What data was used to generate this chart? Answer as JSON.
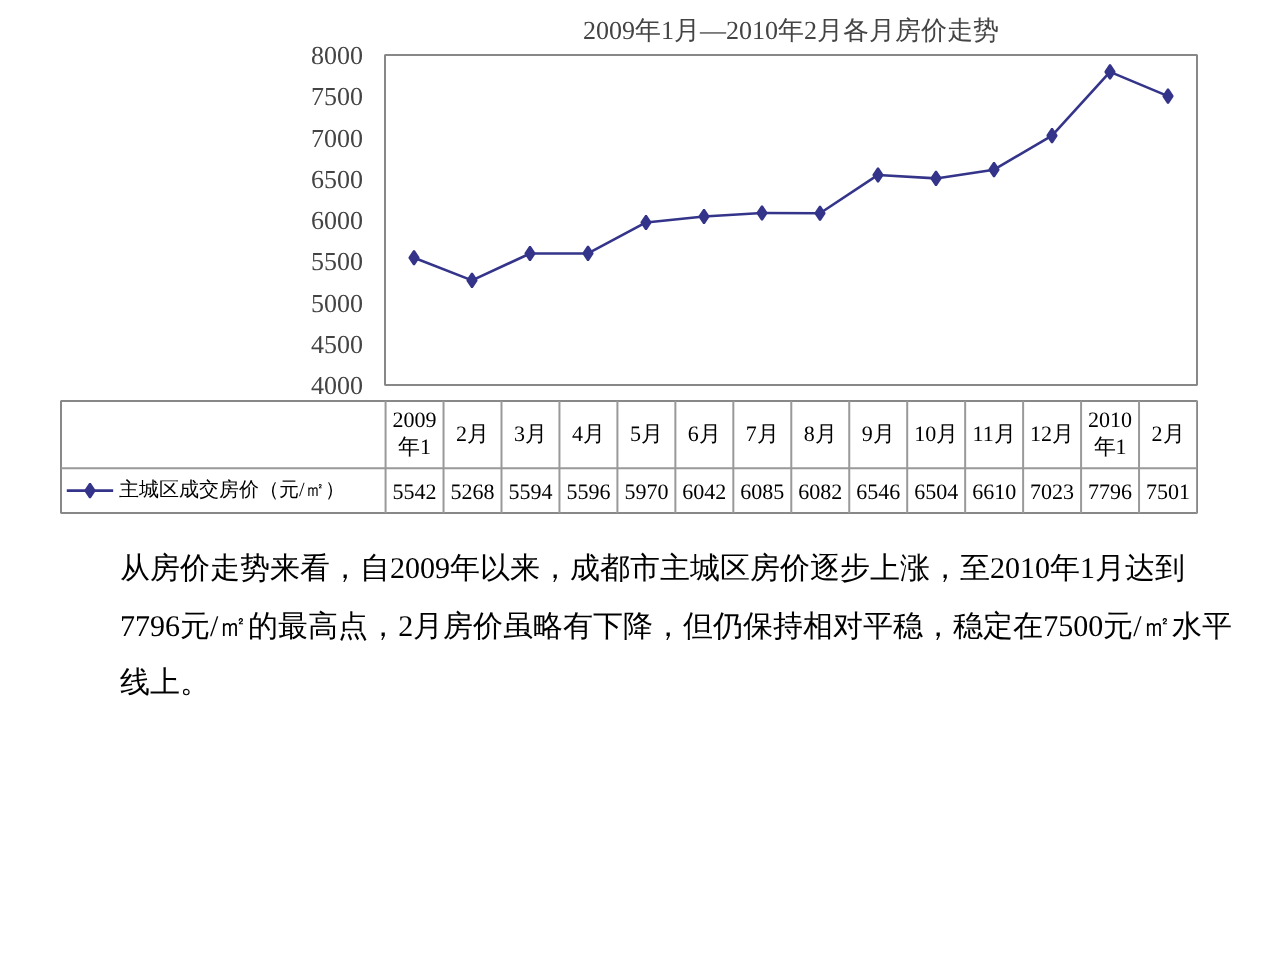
{
  "chart_data": {
    "type": "line",
    "title": "2009年1月—2010年2月各月房价走势",
    "categories": [
      "2009年1",
      "2月",
      "3月",
      "4月",
      "5月",
      "6月",
      "7月",
      "8月",
      "9月",
      "10月",
      "11月",
      "12月",
      "2010年1",
      "2月"
    ],
    "series": [
      {
        "name": "主城区成交房价（元/㎡）",
        "color": "#34348a",
        "values": [
          5542,
          5268,
          5594,
          5596,
          5970,
          6042,
          6085,
          6082,
          6546,
          6504,
          6610,
          7023,
          7796,
          7501
        ]
      }
    ],
    "ylim": [
      4000,
      8000
    ],
    "yticks": [
      4000,
      4500,
      5000,
      5500,
      6000,
      6500,
      7000,
      7500,
      8000
    ],
    "grid": false,
    "marker": "diamond",
    "line_style": "solid",
    "data_labels": true,
    "legend": "bottom left",
    "annotations": [
      "从房价走势来看，自2009年以来，成都市主城区房价逐步上涨，至2010年1月达到7796元/㎡的最高点，2月房价虽略有下降，但仍保持相对平稳，稳定在7500元/㎡水平线上。"
    ]
  }
}
